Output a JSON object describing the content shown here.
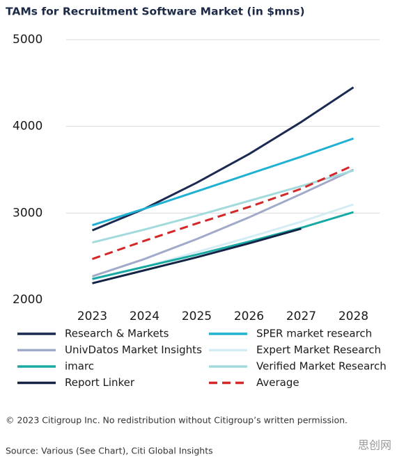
{
  "chart_data": {
    "type": "line",
    "title": "TAMs for Recruitment Software Market (in $mns)",
    "x": [
      "2023",
      "2024",
      "2025",
      "2026",
      "2027",
      "2028"
    ],
    "ylim": [
      2000,
      5000
    ],
    "yticks": [
      2000,
      3000,
      4000,
      5000
    ],
    "grid": true,
    "legend": "bottom",
    "series": [
      {
        "name": "Research & Markets",
        "color": "#1b2a50",
        "values": [
          2800,
          3050,
          3350,
          3680,
          4050,
          4450
        ]
      },
      {
        "name": "SPER market research",
        "color": "#1fb1d4",
        "values": [
          2860,
          3050,
          3250,
          3450,
          3650,
          3860
        ]
      },
      {
        "name": "UnivDatos Market Insights",
        "color": "#a1aac8",
        "values": [
          2270,
          2470,
          2700,
          2950,
          3220,
          3500
        ]
      },
      {
        "name": "Expert Market Research",
        "color": "#d4edf4",
        "values": [
          2230,
          2380,
          2550,
          2720,
          2900,
          3100
        ]
      },
      {
        "name": "imarc",
        "color": "#18aaa2",
        "values": [
          2240,
          2380,
          2520,
          2670,
          2830,
          3010
        ]
      },
      {
        "name": "Verified Market Research",
        "color": "#a3dadd",
        "values": [
          2660,
          2810,
          2970,
          3140,
          3310,
          3490
        ]
      },
      {
        "name": "Report Linker",
        "color": "#142346",
        "values": [
          2190,
          2340,
          2490,
          2650,
          2820,
          null
        ]
      },
      {
        "name": "Average",
        "color": "#d62728",
        "line_style": "dashed",
        "values": [
          2470,
          2680,
          2880,
          3070,
          3280,
          3550
        ]
      }
    ],
    "copyright": "© 2023 Citigroup Inc. No redistribution without Citigroup’s written permission.",
    "source": "Source: Various (See Chart), Citi Global Insights",
    "watermark": "思创网"
  }
}
